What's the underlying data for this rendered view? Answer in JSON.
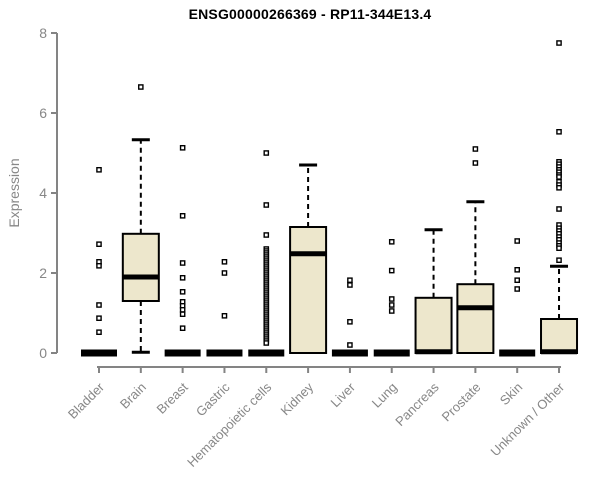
{
  "title": "ENSG00000266369 - RP11-344E13.4",
  "colors": {
    "box_fill": "#EDE7CC",
    "box_border": "#000000",
    "axis": "#848484",
    "tick_label": "#878787",
    "title": "#000000",
    "outlier_fill": "#ffffff",
    "background": "#ffffff"
  },
  "chart_data": {
    "type": "box",
    "title": "ENSG00000266369 - RP11-344E13.4",
    "xlabel": "",
    "ylabel": "Expression",
    "ylim": [
      0,
      8
    ],
    "yticks": [
      0,
      2,
      4,
      6,
      8
    ],
    "grid": false,
    "legend": "none",
    "categories": [
      "Bladder",
      "Brain",
      "Breast",
      "Gastric",
      "Hematopoietic cells",
      "Kidney",
      "Liver",
      "Lung",
      "Pancreas",
      "Prostate",
      "Skin",
      "Unknown / Other"
    ],
    "boxes": [
      {
        "category": "Bladder",
        "low": 0,
        "q1": 0,
        "median": 0,
        "q3": 0,
        "high": 0,
        "outliers": [
          4.58,
          2.72,
          2.28,
          2.18,
          1.2,
          0.87,
          0.52
        ]
      },
      {
        "category": "Brain",
        "low": 0.02,
        "q1": 1.3,
        "median": 1.9,
        "q3": 2.98,
        "high": 5.33,
        "outliers": [
          6.65
        ]
      },
      {
        "category": "Breast",
        "low": 0,
        "q1": 0,
        "median": 0,
        "q3": 0,
        "high": 0,
        "outliers": [
          5.13,
          3.43,
          2.25,
          1.88,
          1.53,
          1.28,
          1.18,
          1.08,
          0.97,
          0.62
        ]
      },
      {
        "category": "Gastric",
        "low": 0,
        "q1": 0,
        "median": 0,
        "q3": 0,
        "high": 0,
        "outliers": [
          2.28,
          2.0,
          0.93
        ]
      },
      {
        "category": "Hematopoietic cells",
        "low": 0,
        "q1": 0,
        "median": 0,
        "q3": 0,
        "high": 0,
        "outliers": [
          5.0,
          3.7,
          2.95,
          2.6,
          2.55,
          2.5,
          2.45,
          2.4,
          2.35,
          2.3,
          2.25,
          2.2,
          2.15,
          2.1,
          2.05,
          2.0,
          1.95,
          1.9,
          1.85,
          1.8,
          1.75,
          1.7,
          1.65,
          1.6,
          1.55,
          1.5,
          1.45,
          1.4,
          1.35,
          1.3,
          1.25,
          1.2,
          1.15,
          1.1,
          1.05,
          1.0,
          0.95,
          0.9,
          0.85,
          0.8,
          0.75,
          0.7,
          0.65,
          0.6,
          0.55,
          0.5,
          0.45,
          0.4,
          0.35,
          0.3,
          0.25
        ]
      },
      {
        "category": "Kidney",
        "low": 0,
        "q1": 0,
        "median": 2.48,
        "q3": 3.15,
        "high": 4.7,
        "outliers": []
      },
      {
        "category": "Liver",
        "low": 0,
        "q1": 0,
        "median": 0,
        "q3": 0,
        "high": 0,
        "outliers": [
          1.82,
          1.7,
          0.78,
          0.2
        ]
      },
      {
        "category": "Lung",
        "low": 0,
        "q1": 0,
        "median": 0,
        "q3": 0,
        "high": 0,
        "outliers": [
          2.78,
          2.06,
          1.35,
          1.2,
          1.05
        ]
      },
      {
        "category": "Pancreas",
        "low": 0,
        "q1": 0,
        "median": 0.03,
        "q3": 1.38,
        "high": 3.08,
        "outliers": []
      },
      {
        "category": "Prostate",
        "low": 0,
        "q1": 0,
        "median": 1.13,
        "q3": 1.72,
        "high": 3.78,
        "outliers": [
          5.1,
          4.75
        ]
      },
      {
        "category": "Skin",
        "low": 0,
        "q1": 0,
        "median": 0,
        "q3": 0,
        "high": 0,
        "outliers": [
          2.8,
          2.08,
          1.82,
          1.6
        ]
      },
      {
        "category": "Unknown / Other",
        "low": 0,
        "q1": 0,
        "median": 0.03,
        "q3": 0.85,
        "high": 2.17,
        "outliers": [
          7.75,
          5.53,
          4.78,
          4.72,
          4.65,
          4.58,
          4.52,
          4.45,
          4.4,
          4.28,
          4.2,
          4.13,
          3.6,
          3.2,
          3.12,
          3.05,
          2.98,
          2.9,
          2.83,
          2.75,
          2.68,
          2.62,
          2.32
        ]
      }
    ]
  }
}
